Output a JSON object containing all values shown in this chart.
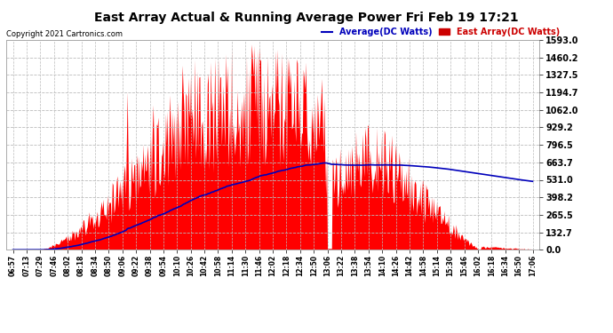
{
  "title": "East Array Actual & Running Average Power Fri Feb 19 17:21",
  "copyright": "Copyright 2021 Cartronics.com",
  "legend_avg": "Average(DC Watts)",
  "legend_east": "East Array(DC Watts)",
  "yticks": [
    0.0,
    132.7,
    265.5,
    398.2,
    531.0,
    663.7,
    796.5,
    929.2,
    1062.0,
    1194.7,
    1327.5,
    1460.2,
    1593.0
  ],
  "ymax": 1593.0,
  "ymin": 0.0,
  "area_color": "#ff0000",
  "avg_line_color": "#0000bb",
  "grid_color": "#bbbbbb",
  "title_color": "#000000",
  "copyright_color": "#000000",
  "legend_avg_color": "#0000bb",
  "legend_east_color": "#cc0000",
  "xtick_labels": [
    "06:57",
    "07:13",
    "07:29",
    "07:46",
    "08:02",
    "08:18",
    "08:34",
    "08:50",
    "09:06",
    "09:22",
    "09:38",
    "09:54",
    "10:10",
    "10:26",
    "10:42",
    "10:58",
    "11:14",
    "11:30",
    "11:46",
    "12:02",
    "12:18",
    "12:34",
    "12:50",
    "13:06",
    "13:22",
    "13:38",
    "13:54",
    "14:10",
    "14:26",
    "14:42",
    "14:58",
    "15:14",
    "15:30",
    "15:46",
    "16:02",
    "16:18",
    "16:34",
    "16:50",
    "17:06"
  ],
  "n_xticks": 39,
  "samples_per_interval": 16
}
